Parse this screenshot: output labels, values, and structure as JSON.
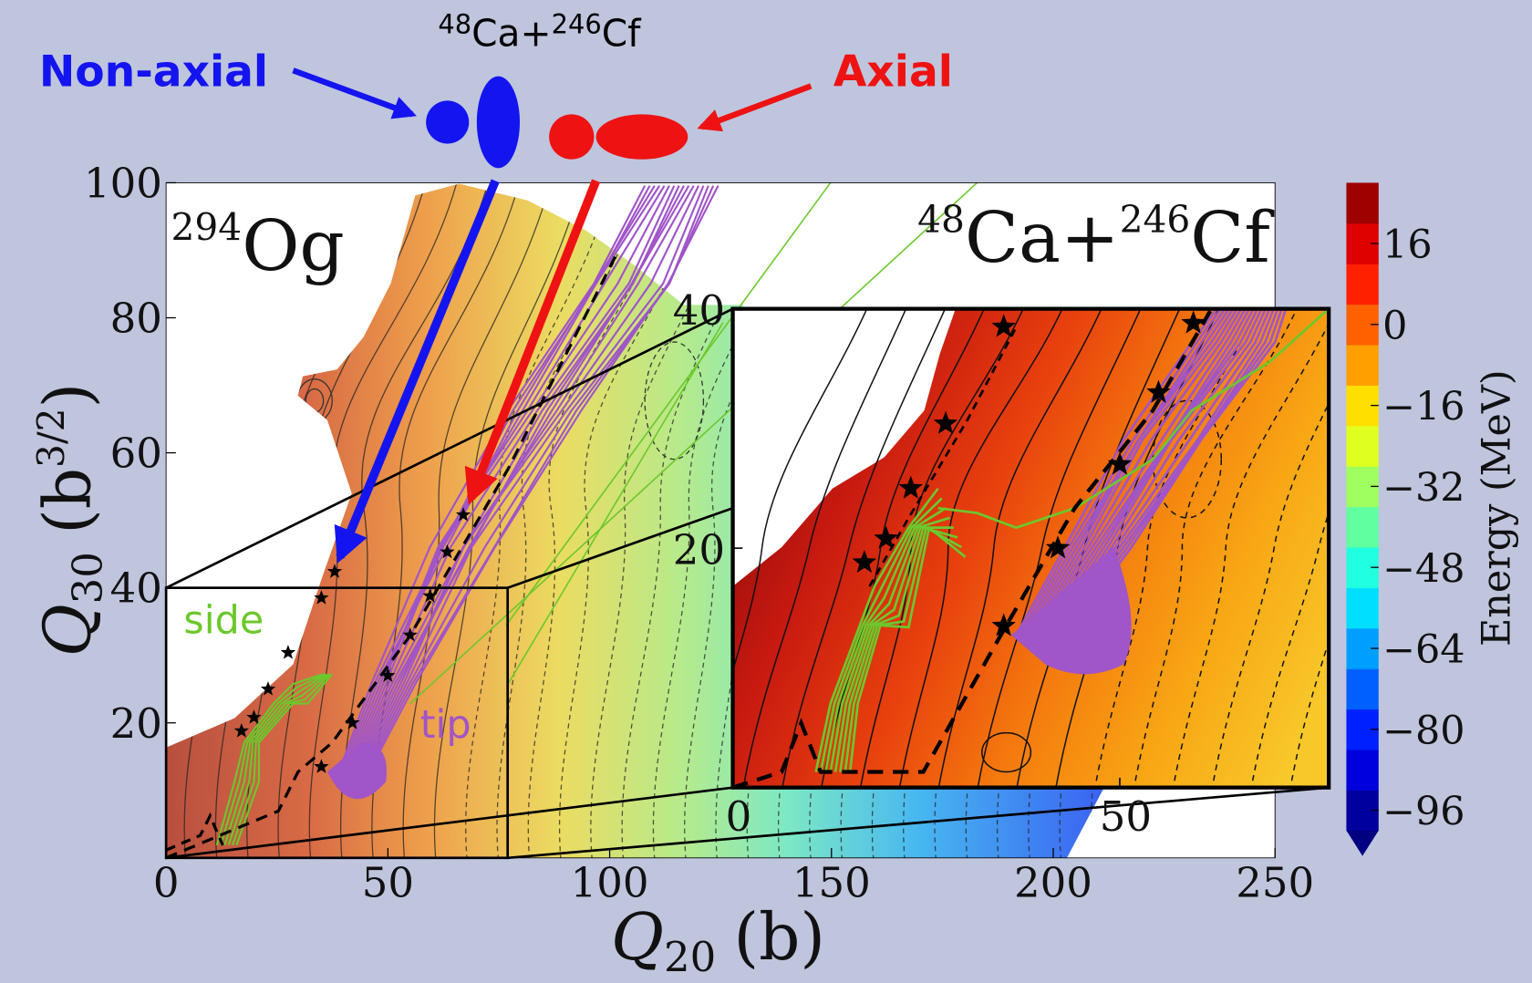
{
  "chart_data": {
    "type": "contour",
    "title": {
      "mass1": "48",
      "symbol1": "Ca+",
      "mass2": "246",
      "symbol2": "Cf"
    },
    "annotations": {
      "non_axial": "Non-axial",
      "non_axial_color": "#1414f0",
      "axial": "Axial",
      "axial_color": "#ee1212",
      "side": "side",
      "side_color": "#6cc82c",
      "tip": "tip",
      "tip_color": "#a055c8"
    },
    "nucleus": {
      "mass": "294",
      "symbol": "Og"
    },
    "reaction": {
      "mass1": "48",
      "symbol1": "Ca+",
      "mass2": "246",
      "symbol2": "Cf"
    },
    "x_label": {
      "symbol": "Q",
      "subscript": "20",
      "unit": "(b)"
    },
    "y_label": {
      "symbol": "Q",
      "subscript": "30",
      "unit": "(b",
      "exponent": "3/2",
      "close": ")"
    },
    "xlim": [
      0,
      250
    ],
    "ylim": [
      0,
      100
    ],
    "xticks": [
      0,
      50,
      100,
      150,
      200,
      250
    ],
    "yticks": [
      20,
      40,
      60,
      80,
      100
    ],
    "inset": {
      "xlim": [
        0,
        77
      ],
      "ylim": [
        0,
        40
      ],
      "xticks": [
        0,
        50
      ],
      "yticks": [
        20,
        40
      ]
    },
    "colorbar": {
      "label": "Energy (MeV)",
      "clim": [
        -100,
        28
      ],
      "step": 8,
      "ticks": [
        16,
        0,
        {
          "value": -16,
          "label": "−16"
        },
        {
          "value": -32,
          "label": "−32"
        },
        {
          "value": -48,
          "label": "−48"
        },
        {
          "value": -64,
          "label": "−64"
        },
        {
          "value": -80,
          "label": "−80"
        },
        {
          "value": -96,
          "label": "−96"
        }
      ]
    },
    "series": [
      {
        "color": "#000000",
        "marker": "star",
        "x": [
          17,
          19.8,
          23,
          27.5,
          35,
          38
        ],
        "y": [
          18.8,
          20.8,
          25,
          30.4,
          38.5,
          42.4
        ]
      },
      {
        "color": "#000000",
        "marker": "star",
        "x": [
          35,
          42,
          50,
          55,
          59.5,
          63.4,
          67
        ],
        "y": [
          13.5,
          20,
          27,
          33,
          38.8,
          45.3,
          50.8
        ]
      }
    ]
  }
}
